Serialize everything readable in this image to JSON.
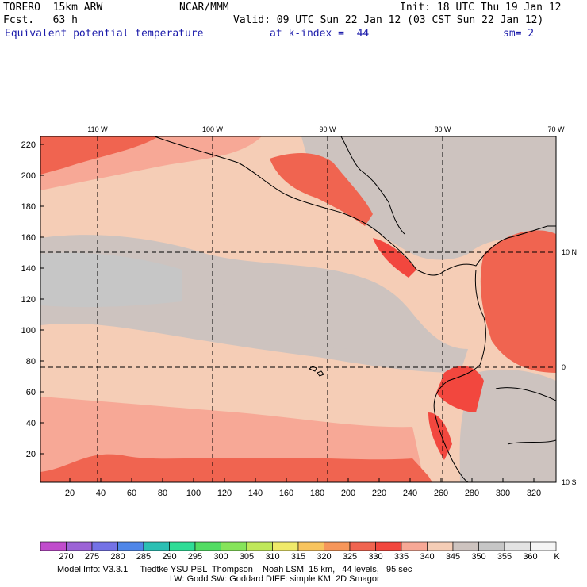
{
  "header": {
    "model": "TORERO  15km ARW",
    "center": "NCAR/MMM",
    "init": "Init: 18 UTC Thu 19 Jan 12",
    "fcst": "Fcst.   63 h",
    "valid": "Valid: 09 UTC Sun 22 Jan 12 (03 CST Sun 22 Jan 12)",
    "field": "Equivalent potential temperature",
    "level": "at k-index =  44",
    "smooth": "sm= 2"
  },
  "map": {
    "lon_labels": [
      "110 W",
      "100 W",
      "90 W",
      "80 W",
      "70 W"
    ],
    "lat_labels": [
      "10 N",
      "0",
      "10 S"
    ],
    "y_ticks": [
      "20",
      "40",
      "60",
      "80",
      "100",
      "120",
      "140",
      "160",
      "180",
      "200",
      "220"
    ],
    "x_ticks": [
      "20",
      "40",
      "60",
      "80",
      "100",
      "120",
      "140",
      "160",
      "180",
      "200",
      "220",
      "240",
      "260",
      "280",
      "300",
      "320"
    ]
  },
  "colorbar": {
    "labels": [
      "270",
      "275",
      "280",
      "285",
      "290",
      "295",
      "300",
      "305",
      "310",
      "315",
      "320",
      "325",
      "330",
      "335",
      "340",
      "345",
      "350",
      "355",
      "360"
    ],
    "unit": "K",
    "colors": [
      "#c04ccc",
      "#9c63d6",
      "#7472e6",
      "#4f86e8",
      "#2bbfb3",
      "#2fdc96",
      "#52dc63",
      "#86e45a",
      "#bfe85a",
      "#f0ea6a",
      "#f8c45e",
      "#f6965a",
      "#f06450",
      "#f2473e",
      "#f7a896",
      "#f5cdb6",
      "#cdc3bf",
      "#c6c6c6",
      "#e3e3e3",
      "#f5f5f5"
    ]
  },
  "footer": {
    "line1": "Model Info: V3.3.1     Tiedtke YSU PBL  Thompson    Noah LSM  15 km,   44 levels,   95 sec",
    "line2": "LW: Godd SW: Goddard DIFF: simple KM: 2D Smagor"
  }
}
